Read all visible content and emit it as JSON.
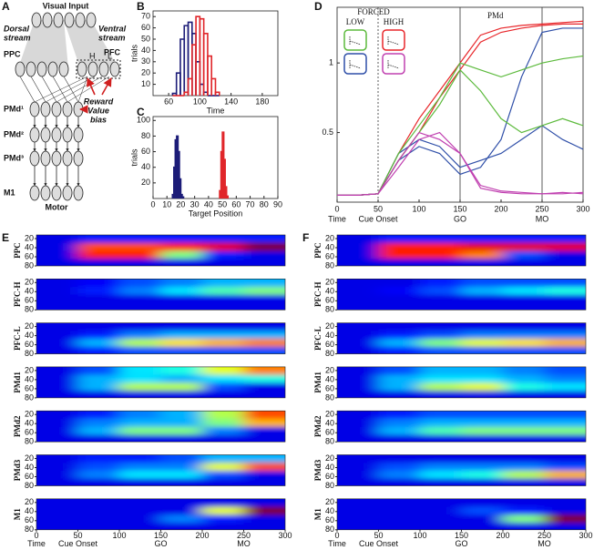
{
  "diagram": {
    "panel": "A",
    "title": "Visual Input",
    "dorsal": [
      "Dorsal",
      "stream"
    ],
    "ventral": [
      "Ventral",
      "stream"
    ],
    "ppc": "PPC",
    "pfc": "PFC",
    "pfc_h": "H",
    "pfc_l": "L",
    "bias": [
      "Reward",
      "Value",
      "bias"
    ],
    "layers": [
      "PMd¹",
      "PMd²",
      "PMd³",
      "M1"
    ],
    "motor": "Motor"
  },
  "chart_data": [
    {
      "type": "histogram",
      "panel": "B",
      "xlabel": "Time",
      "ylabel": "trials",
      "xlim": [
        40,
        200
      ],
      "ylim": [
        0,
        75
      ],
      "xticks": [
        60,
        100,
        140,
        180
      ],
      "yticks": [
        10,
        20,
        30,
        40,
        50,
        60,
        70
      ],
      "series": [
        {
          "color": "#1c1c78",
          "bins": [
            65,
            70,
            75,
            80,
            85,
            90,
            95,
            100,
            105,
            110,
            115,
            120,
            125
          ],
          "counts": [
            2,
            20,
            50,
            62,
            65,
            55,
            30,
            10,
            3,
            0,
            0,
            0
          ]
        },
        {
          "color": "#e0262a",
          "bins": [
            65,
            70,
            75,
            80,
            85,
            90,
            95,
            100,
            105,
            110,
            115,
            120,
            125
          ],
          "counts": [
            0,
            0,
            0,
            3,
            15,
            45,
            70,
            68,
            55,
            35,
            15,
            3
          ]
        }
      ]
    },
    {
      "type": "histogram",
      "panel": "C",
      "xlabel": "Target Position",
      "ylabel": "trials",
      "xlim": [
        0,
        90
      ],
      "ylim": [
        0,
        105
      ],
      "xticks": [
        0,
        10,
        20,
        30,
        40,
        50,
        60,
        70,
        80,
        90
      ],
      "yticks": [
        20,
        40,
        60,
        80,
        100
      ],
      "series": [
        {
          "color": "#1c1c78",
          "bins": [
            14,
            15,
            16,
            17,
            18,
            19,
            20,
            21,
            22
          ],
          "counts": [
            5,
            40,
            75,
            80,
            60,
            25,
            5,
            2
          ]
        },
        {
          "color": "#e0262a",
          "bins": [
            48,
            49,
            50,
            51,
            52,
            53,
            54
          ],
          "counts": [
            10,
            60,
            85,
            50,
            15,
            3
          ]
        }
      ]
    },
    {
      "type": "line",
      "panel": "D",
      "title": "PMd",
      "legend_title": "FORCED",
      "legend_columns": [
        "LOW",
        "HIGH"
      ],
      "xlim": [
        0,
        300
      ],
      "ylim": [
        0,
        1.4
      ],
      "xticks": [
        0,
        50,
        100,
        150,
        200,
        250,
        300
      ],
      "yticks": [
        0.5,
        1
      ],
      "events": [
        {
          "value": 0,
          "label": "Time"
        },
        {
          "value": 50,
          "label": "Cue Onset"
        },
        {
          "value": 150,
          "label": "GO"
        },
        {
          "value": 250,
          "label": "MO"
        }
      ],
      "x": [
        0,
        25,
        50,
        75,
        100,
        125,
        150,
        175,
        200,
        225,
        250,
        275,
        300
      ],
      "series": [
        {
          "color": "#e8262a",
          "values": [
            0.05,
            0.05,
            0.06,
            0.35,
            0.6,
            0.8,
            1.0,
            1.2,
            1.25,
            1.27,
            1.28,
            1.29,
            1.3
          ]
        },
        {
          "color": "#e8262a",
          "values": [
            0.05,
            0.05,
            0.06,
            0.3,
            0.5,
            0.75,
            0.95,
            1.15,
            1.22,
            1.25,
            1.27,
            1.28,
            1.28
          ]
        },
        {
          "color": "#2f4fa8",
          "values": [
            0.05,
            0.05,
            0.06,
            0.3,
            0.4,
            0.35,
            0.2,
            0.25,
            0.45,
            0.9,
            1.22,
            1.25,
            1.25
          ]
        },
        {
          "color": "#2f4fa8",
          "values": [
            0.05,
            0.05,
            0.06,
            0.35,
            0.45,
            0.4,
            0.25,
            0.3,
            0.35,
            0.45,
            0.55,
            0.45,
            0.38
          ]
        },
        {
          "color": "#5cba3c",
          "values": [
            0.05,
            0.05,
            0.06,
            0.35,
            0.55,
            0.75,
            1.0,
            0.95,
            0.9,
            0.95,
            1.0,
            1.03,
            1.05
          ]
        },
        {
          "color": "#5cba3c",
          "values": [
            0.05,
            0.05,
            0.06,
            0.3,
            0.5,
            0.7,
            0.95,
            0.8,
            0.6,
            0.5,
            0.55,
            0.6,
            0.55
          ]
        },
        {
          "color": "#c040b0",
          "values": [
            0.05,
            0.05,
            0.06,
            0.3,
            0.5,
            0.45,
            0.35,
            0.1,
            0.07,
            0.06,
            0.06,
            0.06,
            0.07
          ]
        },
        {
          "color": "#c040b0",
          "values": [
            0.05,
            0.05,
            0.06,
            0.25,
            0.45,
            0.5,
            0.35,
            0.12,
            0.08,
            0.07,
            0.06,
            0.07,
            0.06
          ]
        }
      ]
    },
    {
      "type": "heatmap",
      "panel": "E",
      "xlim": [
        0,
        300
      ],
      "ylim": [
        12,
        80
      ],
      "xticks": [
        0,
        50,
        100,
        150,
        200,
        250,
        300
      ],
      "yticks": [
        20,
        40,
        60,
        80
      ],
      "events": [
        {
          "value": 0,
          "label": "Time"
        },
        {
          "value": 50,
          "label": "Cue Onset"
        },
        {
          "value": 150,
          "label": "GO"
        },
        {
          "value": 250,
          "label": "MO"
        }
      ],
      "x": [
        25,
        75,
        125,
        175,
        225,
        275
      ],
      "y": [
        22,
        37,
        57,
        72
      ],
      "rows": [
        {
          "name": "PPC",
          "z": [
            [
              0.1,
              0.15,
              0.15,
              0.15,
              0.15,
              0.15
            ],
            [
              0.1,
              0.8,
              0.8,
              0.85,
              0.9,
              1.0
            ],
            [
              0.1,
              0.85,
              0.85,
              0.5,
              0.15,
              0.1
            ],
            [
              0.1,
              0.1,
              0.1,
              0.1,
              0.1,
              0.1
            ]
          ]
        },
        {
          "name": "PFC-H",
          "z": [
            [
              0.1,
              0.12,
              0.2,
              0.25,
              0.3,
              0.3
            ],
            [
              0.1,
              0.15,
              0.25,
              0.35,
              0.45,
              0.5
            ],
            [
              0.1,
              0.1,
              0.1,
              0.1,
              0.1,
              0.1
            ],
            [
              0.1,
              0.1,
              0.1,
              0.1,
              0.1,
              0.1
            ]
          ]
        },
        {
          "name": "PFC-L",
          "z": [
            [
              0.1,
              0.1,
              0.1,
              0.1,
              0.1,
              0.1
            ],
            [
              0.1,
              0.15,
              0.25,
              0.3,
              0.3,
              0.3
            ],
            [
              0.1,
              0.3,
              0.55,
              0.65,
              0.7,
              0.75
            ],
            [
              0.1,
              0.15,
              0.2,
              0.2,
              0.2,
              0.2
            ]
          ]
        },
        {
          "name": "PMd1",
          "z": [
            [
              0.1,
              0.2,
              0.35,
              0.4,
              0.6,
              0.75
            ],
            [
              0.1,
              0.3,
              0.35,
              0.3,
              0.35,
              0.4
            ],
            [
              0.1,
              0.3,
              0.55,
              0.55,
              0.2,
              0.1
            ],
            [
              0.1,
              0.1,
              0.1,
              0.1,
              0.1,
              0.1
            ]
          ]
        },
        {
          "name": "PMd2",
          "z": [
            [
              0.1,
              0.15,
              0.25,
              0.3,
              0.55,
              0.8
            ],
            [
              0.1,
              0.25,
              0.3,
              0.3,
              0.5,
              0.7
            ],
            [
              0.1,
              0.3,
              0.5,
              0.5,
              0.25,
              0.1
            ],
            [
              0.1,
              0.1,
              0.1,
              0.1,
              0.1,
              0.1
            ]
          ]
        },
        {
          "name": "PMd3",
          "z": [
            [
              0.1,
              0.15,
              0.15,
              0.2,
              0.3,
              0.3
            ],
            [
              0.1,
              0.2,
              0.25,
              0.25,
              0.6,
              0.8
            ],
            [
              0.1,
              0.25,
              0.35,
              0.35,
              0.2,
              0.1
            ],
            [
              0.1,
              0.1,
              0.1,
              0.1,
              0.1,
              0.1
            ]
          ]
        },
        {
          "name": "M1",
          "z": [
            [
              0.1,
              0.1,
              0.1,
              0.1,
              0.1,
              0.1
            ],
            [
              0.1,
              0.1,
              0.1,
              0.1,
              0.6,
              1.0
            ],
            [
              0.1,
              0.1,
              0.1,
              0.25,
              0.15,
              0.1
            ],
            [
              0.1,
              0.1,
              0.1,
              0.1,
              0.1,
              0.1
            ]
          ]
        }
      ]
    },
    {
      "type": "heatmap",
      "panel": "F",
      "xlim": [
        0,
        300
      ],
      "ylim": [
        12,
        80
      ],
      "xticks": [
        0,
        50,
        100,
        150,
        200,
        250,
        300
      ],
      "yticks": [
        20,
        40,
        60,
        80
      ],
      "events": [
        {
          "value": 0,
          "label": "Time"
        },
        {
          "value": 50,
          "label": "Cue Onset"
        },
        {
          "value": 150,
          "label": "GO"
        },
        {
          "value": 250,
          "label": "MO"
        }
      ],
      "x": [
        25,
        75,
        125,
        175,
        225,
        275
      ],
      "y": [
        22,
        37,
        57,
        72
      ],
      "rows": [
        {
          "name": "PPC",
          "z": [
            [
              0.1,
              0.15,
              0.15,
              0.15,
              0.15,
              0.15
            ],
            [
              0.1,
              0.85,
              0.85,
              0.9,
              0.9,
              0.9
            ],
            [
              0.1,
              0.85,
              0.85,
              0.75,
              0.2,
              0.1
            ],
            [
              0.1,
              0.1,
              0.1,
              0.1,
              0.1,
              0.1
            ]
          ]
        },
        {
          "name": "PFC-H",
          "z": [
            [
              0.1,
              0.1,
              0.15,
              0.2,
              0.2,
              0.2
            ],
            [
              0.1,
              0.12,
              0.2,
              0.3,
              0.35,
              0.4
            ],
            [
              0.1,
              0.1,
              0.1,
              0.1,
              0.1,
              0.1
            ],
            [
              0.1,
              0.1,
              0.1,
              0.1,
              0.1,
              0.1
            ]
          ]
        },
        {
          "name": "PFC-L",
          "z": [
            [
              0.1,
              0.1,
              0.1,
              0.1,
              0.1,
              0.1
            ],
            [
              0.1,
              0.15,
              0.2,
              0.25,
              0.25,
              0.25
            ],
            [
              0.1,
              0.3,
              0.5,
              0.6,
              0.65,
              0.7
            ],
            [
              0.1,
              0.15,
              0.2,
              0.2,
              0.2,
              0.2
            ]
          ]
        },
        {
          "name": "PMd1",
          "z": [
            [
              0.1,
              0.2,
              0.3,
              0.3,
              0.25,
              0.2
            ],
            [
              0.1,
              0.3,
              0.35,
              0.35,
              0.3,
              0.25
            ],
            [
              0.1,
              0.3,
              0.55,
              0.6,
              0.4,
              0.35
            ],
            [
              0.1,
              0.1,
              0.1,
              0.1,
              0.1,
              0.1
            ]
          ]
        },
        {
          "name": "PMd2",
          "z": [
            [
              0.1,
              0.15,
              0.2,
              0.2,
              0.2,
              0.2
            ],
            [
              0.1,
              0.25,
              0.3,
              0.3,
              0.3,
              0.3
            ],
            [
              0.1,
              0.3,
              0.45,
              0.5,
              0.5,
              0.5
            ],
            [
              0.1,
              0.1,
              0.1,
              0.1,
              0.1,
              0.1
            ]
          ]
        },
        {
          "name": "PMd3",
          "z": [
            [
              0.1,
              0.1,
              0.1,
              0.1,
              0.1,
              0.1
            ],
            [
              0.1,
              0.2,
              0.25,
              0.25,
              0.25,
              0.2
            ],
            [
              0.1,
              0.25,
              0.35,
              0.4,
              0.55,
              0.7
            ],
            [
              0.1,
              0.1,
              0.1,
              0.1,
              0.1,
              0.1
            ]
          ]
        },
        {
          "name": "M1",
          "z": [
            [
              0.1,
              0.1,
              0.1,
              0.1,
              0.1,
              0.1
            ],
            [
              0.1,
              0.1,
              0.1,
              0.2,
              0.15,
              0.1
            ],
            [
              0.1,
              0.1,
              0.1,
              0.1,
              0.5,
              1.0
            ],
            [
              0.1,
              0.1,
              0.1,
              0.1,
              0.1,
              0.1
            ]
          ]
        }
      ]
    }
  ]
}
